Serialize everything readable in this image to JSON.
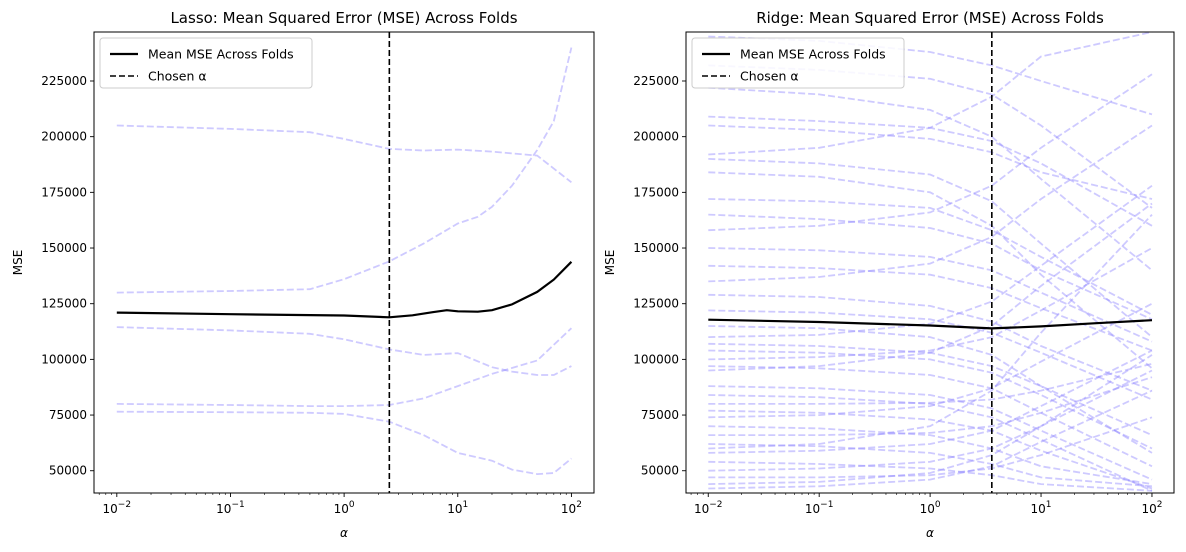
{
  "chart_data": [
    {
      "type": "line",
      "title": "Lasso: Mean Squared Error (MSE) Across Folds",
      "xlabel": "α",
      "ylabel": "MSE",
      "xscale": "log",
      "xlim": [
        0.0063,
        158
      ],
      "ylim": [
        40000,
        247000
      ],
      "xticks": [
        0.01,
        0.1,
        1,
        10,
        100
      ],
      "xtick_labels": [
        {
          "base": "10",
          "exp": "−2"
        },
        {
          "base": "10",
          "exp": "−1"
        },
        {
          "base": "10",
          "exp": "0"
        },
        {
          "base": "10",
          "exp": "1"
        },
        {
          "base": "10",
          "exp": "2"
        }
      ],
      "yticks": [
        "50000",
        "75000",
        "100000",
        "125000",
        "150000",
        "175000",
        "200000",
        "225000"
      ],
      "grid": false,
      "legend": {
        "position": "top-left",
        "entries": [
          {
            "label": "Mean MSE Across Folds",
            "style": "solid"
          },
          {
            "label": "Chosen α",
            "style": "dashed"
          }
        ]
      },
      "chosen_alpha": 2.5,
      "mean_series": {
        "name": "Mean MSE Across Folds",
        "color": "#000000",
        "x": [
          0.01,
          0.1,
          1,
          2.5,
          4,
          6,
          8,
          10,
          15,
          20,
          30,
          50,
          70,
          100
        ],
        "values": [
          121000,
          120300,
          119700,
          118900,
          119800,
          121200,
          122100,
          121600,
          121400,
          122100,
          124700,
          130300,
          135800,
          143800
        ]
      },
      "fold_color": "#8a80ff",
      "fold_series": [
        {
          "x": [
            0.01,
            0.1,
            0.5,
            1,
            2.5,
            5,
            10,
            20,
            30,
            50,
            100
          ],
          "values": [
            205000,
            203500,
            202000,
            199000,
            194500,
            193800,
            194200,
            193300,
            192500,
            191500,
            179500
          ]
        },
        {
          "x": [
            0.01,
            0.1,
            0.5,
            1,
            2.5,
            5,
            10,
            15,
            20,
            30,
            50,
            70,
            100
          ],
          "values": [
            130000,
            130700,
            131500,
            136000,
            144000,
            152000,
            161000,
            164000,
            168500,
            178000,
            194000,
            207000,
            240000
          ]
        },
        {
          "x": [
            0.01,
            0.1,
            0.5,
            1,
            2.5,
            5,
            10,
            20,
            30,
            50,
            70,
            100
          ],
          "values": [
            114500,
            113000,
            111500,
            109000,
            104500,
            102000,
            102800,
            96500,
            94500,
            93000,
            93000,
            97000
          ]
        },
        {
          "x": [
            0.01,
            0.1,
            0.5,
            1,
            2.5,
            5,
            10,
            20,
            50,
            100
          ],
          "values": [
            80000,
            79500,
            79000,
            79000,
            79500,
            82500,
            88000,
            93500,
            99500,
            114000
          ]
        },
        {
          "x": [
            0.01,
            0.1,
            0.5,
            1,
            2.5,
            5,
            10,
            20,
            30,
            50,
            70,
            100
          ],
          "values": [
            76500,
            76300,
            76000,
            75500,
            72000,
            66000,
            58000,
            54500,
            50500,
            48500,
            49000,
            55500
          ]
        }
      ]
    },
    {
      "type": "line",
      "title": "Ridge: Mean Squared Error (MSE) Across Folds",
      "xlabel": "α",
      "ylabel": "MSE",
      "xscale": "log",
      "xlim": [
        0.0063,
        158
      ],
      "ylim": [
        40000,
        247000
      ],
      "xticks": [
        0.01,
        0.1,
        1,
        10,
        100
      ],
      "xtick_labels": [
        {
          "base": "10",
          "exp": "−2"
        },
        {
          "base": "10",
          "exp": "−1"
        },
        {
          "base": "10",
          "exp": "0"
        },
        {
          "base": "10",
          "exp": "1"
        },
        {
          "base": "10",
          "exp": "2"
        }
      ],
      "yticks": [
        "50000",
        "75000",
        "100000",
        "125000",
        "150000",
        "175000",
        "200000",
        "225000"
      ],
      "grid": false,
      "legend": {
        "position": "top-left",
        "entries": [
          {
            "label": "Mean MSE Across Folds",
            "style": "solid"
          },
          {
            "label": "Chosen α",
            "style": "dashed"
          }
        ]
      },
      "chosen_alpha": 3.6,
      "mean_series": {
        "name": "Mean MSE Across Folds",
        "color": "#000000",
        "x": [
          0.01,
          0.1,
          1,
          3.6,
          10,
          30,
          100
        ],
        "values": [
          117800,
          116800,
          115200,
          113900,
          114800,
          116200,
          117600
        ]
      },
      "fold_color": "#8a80ff",
      "fold_series": [
        {
          "x": [
            0.01,
            0.1,
            1,
            3.6,
            10,
            100
          ],
          "values": [
            245000,
            243000,
            238000,
            232000,
            225000,
            210000
          ]
        },
        {
          "x": [
            0.01,
            0.1,
            1,
            3.6,
            10,
            100
          ],
          "values": [
            232000,
            230000,
            226000,
            219000,
            205000,
            168000
          ]
        },
        {
          "x": [
            0.01,
            0.1,
            1,
            3.6,
            10,
            100
          ],
          "values": [
            222000,
            219000,
            212000,
            200000,
            181000,
            140000
          ]
        },
        {
          "x": [
            0.01,
            0.1,
            1,
            3.6,
            10,
            100
          ],
          "values": [
            209000,
            207000,
            204000,
            198000,
            188000,
            160000
          ]
        },
        {
          "x": [
            0.01,
            0.1,
            1,
            3.6,
            10,
            100
          ],
          "values": [
            205000,
            203000,
            199000,
            193000,
            184000,
            172000
          ]
        },
        {
          "x": [
            0.01,
            0.1,
            1,
            3.6,
            10,
            100
          ],
          "values": [
            192000,
            195000,
            204000,
            218000,
            236000,
            247000
          ]
        },
        {
          "x": [
            0.01,
            0.1,
            1,
            3.6,
            10,
            100
          ],
          "values": [
            190000,
            188000,
            183000,
            171000,
            152000,
            110000
          ]
        },
        {
          "x": [
            0.01,
            0.1,
            1,
            3.6,
            10,
            100
          ],
          "values": [
            184000,
            182000,
            175000,
            160000,
            138000,
            96000
          ]
        },
        {
          "x": [
            0.01,
            0.1,
            1,
            3.6,
            10,
            100
          ],
          "values": [
            172000,
            171000,
            168000,
            158000,
            146000,
            120000
          ]
        },
        {
          "x": [
            0.01,
            0.1,
            1,
            3.6,
            10,
            100
          ],
          "values": [
            165000,
            163000,
            159000,
            152000,
            140000,
            118000
          ]
        },
        {
          "x": [
            0.01,
            0.1,
            1,
            3.6,
            10,
            100
          ],
          "values": [
            158000,
            160000,
            166000,
            178000,
            195000,
            228000
          ]
        },
        {
          "x": [
            0.01,
            0.1,
            1,
            3.6,
            10,
            100
          ],
          "values": [
            150000,
            149000,
            146000,
            140000,
            130000,
            108000
          ]
        },
        {
          "x": [
            0.01,
            0.1,
            1,
            3.6,
            10,
            100
          ],
          "values": [
            142000,
            141000,
            138000,
            132000,
            123000,
            104000
          ]
        },
        {
          "x": [
            0.01,
            0.1,
            1,
            3.6,
            10,
            100
          ],
          "values": [
            135000,
            137000,
            143000,
            155000,
            172000,
            205000
          ]
        },
        {
          "x": [
            0.01,
            0.1,
            1,
            3.6,
            10,
            100
          ],
          "values": [
            129000,
            128000,
            124000,
            117000,
            106000,
            86000
          ]
        },
        {
          "x": [
            0.01,
            0.1,
            1,
            3.6,
            10,
            100
          ],
          "values": [
            122000,
            121000,
            118000,
            112000,
            103000,
            82000
          ]
        },
        {
          "x": [
            0.01,
            0.1,
            1,
            3.6,
            10,
            100
          ],
          "values": [
            110000,
            111000,
            116000,
            126000,
            142000,
            178000
          ]
        },
        {
          "x": [
            0.01,
            0.1,
            1,
            3.6,
            10,
            100
          ],
          "values": [
            107000,
            106000,
            103000,
            97000,
            88000,
            66000
          ]
        },
        {
          "x": [
            0.01,
            0.1,
            1,
            3.6,
            10,
            100
          ],
          "values": [
            104000,
            103000,
            100000,
            94000,
            84000,
            60000
          ]
        },
        {
          "x": [
            0.01,
            0.1,
            1,
            3.6,
            10,
            100
          ],
          "values": [
            97000,
            96000,
            93000,
            87000,
            76000,
            52000
          ]
        },
        {
          "x": [
            0.01,
            0.1,
            1,
            3.6,
            10,
            100
          ],
          "values": [
            95000,
            97000,
            103000,
            115000,
            133000,
            170000
          ]
        },
        {
          "x": [
            0.01,
            0.1,
            1,
            3.6,
            10,
            100
          ],
          "values": [
            88000,
            87000,
            84000,
            78000,
            68000,
            46000
          ]
        },
        {
          "x": [
            0.01,
            0.1,
            1,
            3.6,
            10,
            100
          ],
          "values": [
            84000,
            83000,
            80000,
            74000,
            64000,
            41000
          ]
        },
        {
          "x": [
            0.01,
            0.1,
            1,
            3.6,
            10,
            100
          ],
          "values": [
            80000,
            80000,
            80500,
            82000,
            86000,
            98000
          ]
        },
        {
          "x": [
            0.01,
            0.1,
            1,
            3.6,
            10,
            100
          ],
          "values": [
            77000,
            76000,
            73000,
            68000,
            59000,
            42000
          ]
        },
        {
          "x": [
            0.01,
            0.1,
            1,
            3.6,
            10,
            100
          ],
          "values": [
            74000,
            75000,
            79000,
            87000,
            99000,
            125000
          ]
        },
        {
          "x": [
            0.01,
            0.1,
            1,
            3.6,
            10,
            100
          ],
          "values": [
            70000,
            69000,
            66000,
            60000,
            52000,
            44000
          ]
        },
        {
          "x": [
            0.01,
            0.1,
            1,
            3.6,
            10,
            100
          ],
          "values": [
            66000,
            66000,
            67000,
            70000,
            76000,
            92000
          ]
        },
        {
          "x": [
            0.01,
            0.1,
            1,
            3.6,
            10,
            100
          ],
          "values": [
            62000,
            61000,
            58000,
            53000,
            47000,
            43000
          ]
        },
        {
          "x": [
            0.01,
            0.1,
            1,
            3.6,
            10,
            100
          ],
          "values": [
            58000,
            59000,
            62000,
            68000,
            79000,
            104000
          ]
        },
        {
          "x": [
            0.01,
            0.1,
            1,
            3.6,
            10,
            100
          ],
          "values": [
            54000,
            53000,
            51000,
            48000,
            44000,
            41000
          ]
        },
        {
          "x": [
            0.01,
            0.1,
            1,
            3.6,
            10,
            100
          ],
          "values": [
            50000,
            51000,
            54000,
            60000,
            70000,
            95000
          ]
        },
        {
          "x": [
            0.01,
            0.1,
            1,
            3.6,
            10,
            100
          ],
          "values": [
            47000,
            47000,
            48000,
            51000,
            57000,
            74000
          ]
        },
        {
          "x": [
            0.01,
            0.1,
            1,
            3.6,
            10,
            100
          ],
          "values": [
            44000,
            45000,
            49000,
            57000,
            70000,
            102000
          ]
        },
        {
          "x": [
            0.01,
            0.1,
            1,
            3.6,
            10,
            100
          ],
          "values": [
            42000,
            43000,
            46000,
            52000,
            63000,
            86000
          ]
        },
        {
          "x": [
            0.01,
            0.1,
            1,
            3.6,
            10,
            100
          ],
          "values": [
            60000,
            62000,
            70000,
            86000,
            112000,
            165000
          ]
        },
        {
          "x": [
            0.01,
            0.1,
            1,
            3.6,
            10,
            100
          ],
          "values": [
            100000,
            101000,
            104000,
            110000,
            122000,
            150000
          ]
        },
        {
          "x": [
            0.01,
            0.1,
            1,
            3.6,
            10,
            100
          ],
          "values": [
            115000,
            114000,
            110000,
            102000,
            88000,
            58000
          ]
        }
      ]
    }
  ]
}
